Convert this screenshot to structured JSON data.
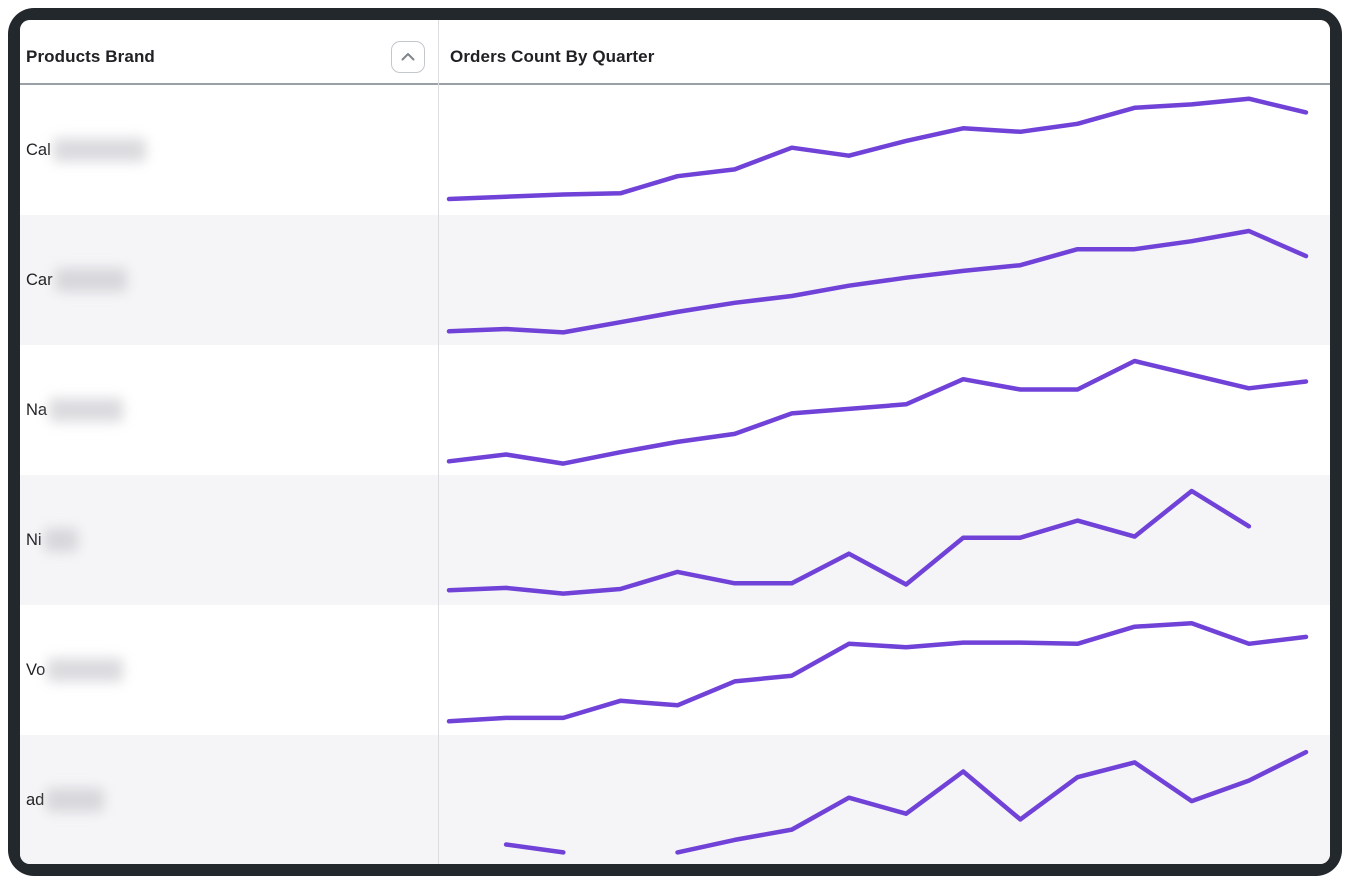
{
  "window": {
    "frame_color": "#23282d"
  },
  "table": {
    "columns": [
      {
        "label": "Products Brand"
      },
      {
        "label": "Orders Count By Quarter"
      }
    ],
    "sort_button": {
      "icon": "chevron-up",
      "state": "ascending"
    },
    "rows": [
      {
        "brand_prefix": "Cal",
        "redacted": true,
        "redact_width": 93
      },
      {
        "brand_prefix": "Car",
        "redacted": true,
        "redact_width": 72
      },
      {
        "brand_prefix": "Na",
        "redacted": true,
        "redact_width": 74
      },
      {
        "brand_prefix": "Ni",
        "redacted": true,
        "redact_width": 34
      },
      {
        "brand_prefix": "Vo",
        "redacted": true,
        "redact_width": 76
      },
      {
        "brand_prefix": "ad",
        "redacted": true,
        "redact_width": 58
      }
    ]
  },
  "chart_data": {
    "type": "line",
    "title": "Orders Count By Quarter",
    "x_unit": "16 sequential quarters (unlabeled sparkline x-axis)",
    "y_axis": "orders count, no visible scale; values normalized 0-100 of row height",
    "grid": false,
    "legend": false,
    "line_color": "#7042d8",
    "line_width": 4.5,
    "null_means": "missing quarter (gap in line)",
    "series": [
      {
        "name": "Cal (redacted)",
        "values": [
          7,
          9,
          11,
          12,
          27,
          33,
          52,
          45,
          58,
          69,
          66,
          73,
          87,
          90,
          95,
          83
        ]
      },
      {
        "name": "Car (redacted)",
        "values": [
          5,
          7,
          4,
          13,
          22,
          30,
          36,
          45,
          52,
          58,
          63,
          77,
          77,
          84,
          93,
          71
        ]
      },
      {
        "name": "Na (redacted)",
        "values": [
          5,
          11,
          3,
          13,
          22,
          29,
          47,
          51,
          55,
          77,
          68,
          68,
          93,
          81,
          69,
          75
        ]
      },
      {
        "name": "Ni (redacted)",
        "values": [
          6,
          8,
          3,
          7,
          22,
          12,
          12,
          38,
          11,
          52,
          52,
          67,
          53,
          93,
          62,
          null
        ]
      },
      {
        "name": "Vo (redacted)",
        "values": [
          5,
          8,
          8,
          23,
          19,
          40,
          45,
          73,
          70,
          74,
          74,
          73,
          88,
          91,
          73,
          79
        ]
      },
      {
        "name": "ad (redacted)",
        "values": [
          null,
          11,
          4,
          null,
          4,
          15,
          24,
          52,
          38,
          75,
          33,
          70,
          83,
          49,
          67,
          92
        ]
      }
    ]
  },
  "colors": {
    "frame": "#23282d",
    "header_border": "#9aa0a6",
    "column_divider": "#dcdde0",
    "row_bg": "#ffffff",
    "row_alt_bg": "#f5f5f7",
    "text": "#202124",
    "sparkline": "#7042d8",
    "sort_button_border": "#c4c7cc",
    "sort_icon": "#80868b",
    "redaction": "#c8c8cd"
  }
}
